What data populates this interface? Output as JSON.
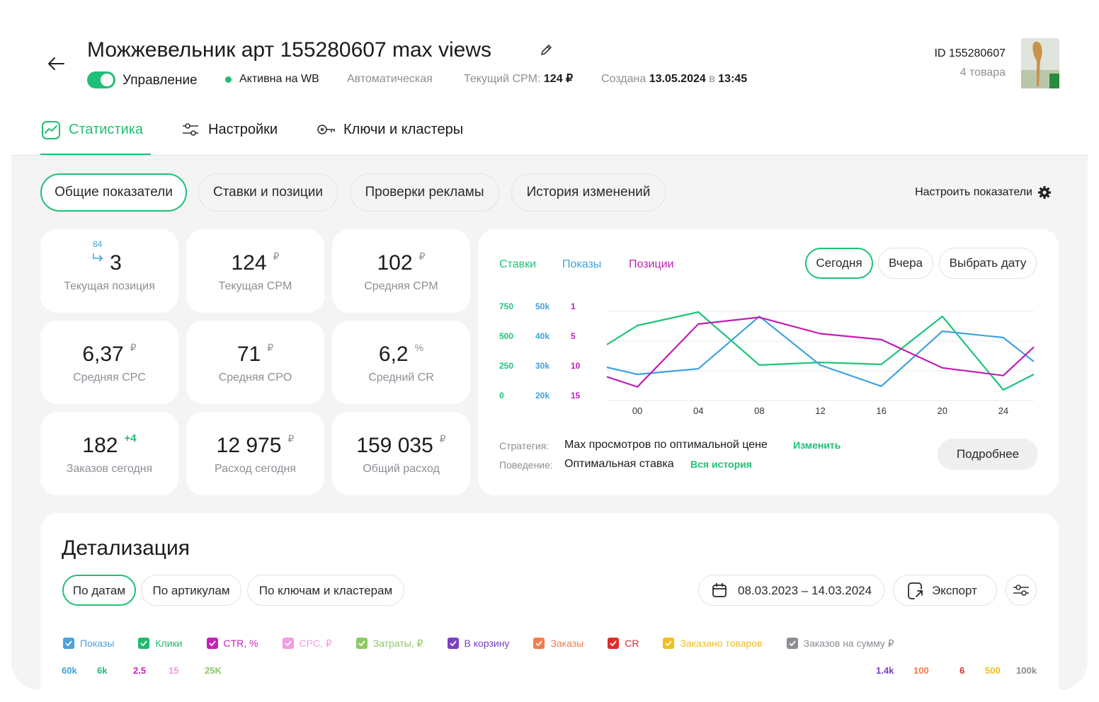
{
  "header": {
    "title": "Можжевельник арт 155280607 max views",
    "toggle_label": "Управление",
    "status": "Активна на WB",
    "mode": "Автоматическая",
    "cpm_label": "Текущий CPM:",
    "cpm_value": "124 ₽",
    "created_label": "Создана",
    "created_date": "13.05.2024",
    "created_at_label": "в",
    "created_time": "13:45",
    "id": "ID 155280607",
    "items": "4 товара"
  },
  "tabs": [
    "Статистика",
    "Настройки",
    "Ключи и кластеры"
  ],
  "subtabs": [
    "Общие показатели",
    "Ставки и позиции",
    "Проверки рекламы",
    "История изменений"
  ],
  "configure": "Настроить показатели",
  "cards": [
    {
      "value": "3",
      "prev": "84",
      "label": "Текущая позиция"
    },
    {
      "value": "124",
      "unit": "₽",
      "label": "Текущая CPM"
    },
    {
      "value": "102",
      "unit": "₽",
      "label": "Средняя CPM"
    },
    {
      "value": "6,37",
      "unit": "₽",
      "label": "Средняя CPC"
    },
    {
      "value": "71",
      "unit": "₽",
      "label": "Средняя CPO"
    },
    {
      "value": "6,2",
      "unit": "%",
      "label": "Средний CR"
    },
    {
      "value": "182",
      "delta": "+4",
      "label": "Заказов сегодня"
    },
    {
      "value": "12 975",
      "unit": "₽",
      "label": "Расход сегодня"
    },
    {
      "value": "159 035",
      "unit": "₽",
      "label": "Общий расход"
    }
  ],
  "chart": {
    "type": "line",
    "x": [
      -2,
      0,
      4,
      8,
      12,
      16,
      20,
      24,
      26
    ],
    "xlim": [
      -2,
      26
    ],
    "xticks": [
      {
        "value": 0,
        "label": "00"
      },
      {
        "value": 4,
        "label": "04"
      },
      {
        "value": 8,
        "label": "08"
      },
      12,
      16,
      20,
      24
    ],
    "series": [
      {
        "name": "Ставки",
        "color": "#1fc47a",
        "ticks": [
          750,
          500,
          250,
          0
        ],
        "values": [
          470,
          631,
          744,
          298,
          321,
          304,
          708,
          89,
          220
        ]
      },
      {
        "name": "Показы",
        "color": "#3fa3dc",
        "ticks": [
          {
            "value": 50000,
            "label": "50k"
          },
          {
            "value": 40000,
            "label": "40k"
          },
          {
            "value": 30000,
            "label": "30k"
          },
          {
            "value": 20000,
            "label": "20k"
          }
        ],
        "values": [
          31200,
          28800,
          30700,
          48300,
          31900,
          24800,
          43300,
          41200,
          33100
        ]
      },
      {
        "name": "Позиции",
        "color": "#c21db4",
        "ticks": [
          1,
          5,
          10,
          15
        ],
        "values": [
          11,
          12.7,
          2.7,
          1.8,
          4,
          4.8,
          9.5,
          10.8,
          6
        ]
      }
    ],
    "periods": [
      "Сегодня",
      "Вчера",
      "Выбрать дату"
    ],
    "strategy_label": "Стратегия:",
    "strategy": "Max просмотров по оптимальной цене",
    "strategy_link": "Изменить",
    "behavior_label": "Поведение:",
    "behavior": "Оптимальная ставка",
    "behavior_link": "Вся история",
    "more": "Подробнее"
  },
  "detail": {
    "title": "Детализация",
    "tabs": [
      "По датам",
      "По артикулам",
      "По ключам и кластерам"
    ],
    "date_range": "08.03.2023 – 14.03.2024",
    "export": "Экспорт",
    "metrics": [
      {
        "name": "Показы",
        "color": "#4aa3df"
      },
      {
        "name": "Клики",
        "color": "#1fb96e"
      },
      {
        "name": "CTR, %",
        "color": "#c91fb8"
      },
      {
        "name": "CPC, ₽",
        "color": "#f49ae6"
      },
      {
        "name": "Затраты, ₽",
        "color": "#8cc964"
      },
      {
        "name": "В корзину",
        "color": "#7a3fc4"
      },
      {
        "name": "Заказы",
        "color": "#f47c4a"
      },
      {
        "name": "CR",
        "color": "#e02b2b"
      },
      {
        "name": "Заказано товаров",
        "color": "#f5be1c"
      },
      {
        "name": "Заказов на сумму ₽",
        "color": "#8c8c94"
      }
    ],
    "axis_left": [
      {
        "label": "60k",
        "color": "#3fa3dc"
      },
      {
        "label": "6k",
        "color": "#1fb96e"
      },
      {
        "label": "2.5",
        "color": "#c91fb8"
      },
      {
        "label": "15",
        "color": "#f49ae6"
      },
      {
        "label": "25K",
        "color": "#8cc964"
      }
    ],
    "axis_right": [
      {
        "label": "1.4k",
        "color": "#7a3fc4"
      },
      {
        "label": "100",
        "color": "#f47c4a"
      },
      {
        "label": "6",
        "color": "#e02b2b"
      },
      {
        "label": "500",
        "color": "#f5be1c"
      },
      {
        "label": "100k",
        "color": "#8c8c94"
      }
    ]
  }
}
